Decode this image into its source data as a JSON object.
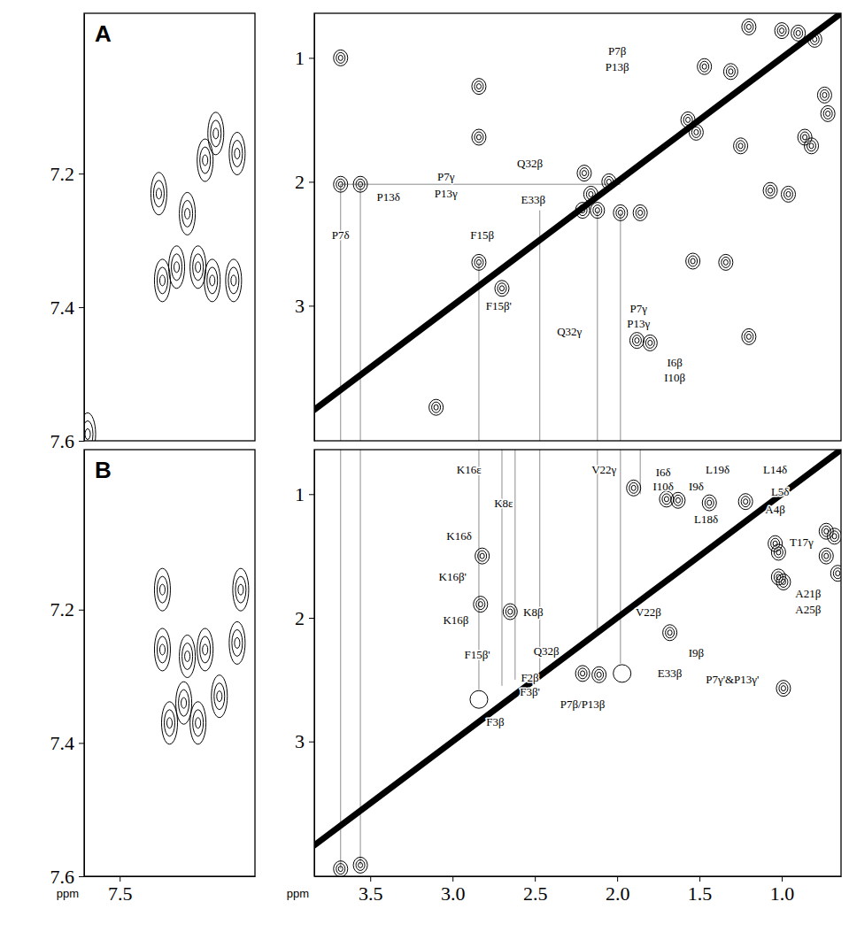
{
  "chart_data": [
    {
      "type": "contour",
      "title": "A",
      "xlim": [
        7.6,
        7.12
      ],
      "ylim": [
        6.96,
        7.6
      ],
      "yticks": [
        7.2,
        7.4,
        7.6
      ],
      "tick_labels": "y",
      "series": [
        {
          "type": "scatter",
          "marker": "contour",
          "x": [
            7.39,
            7.38,
            7.34,
            7.31,
            7.28,
            7.26,
            7.24,
            7.18,
            7.17,
            7.23,
            7.59
          ],
          "values": [
            7.23,
            7.36,
            7.34,
            7.26,
            7.34,
            7.18,
            7.36,
            7.36,
            7.17,
            7.14,
            7.59
          ]
        }
      ]
    },
    {
      "type": "contour",
      "xlim": [
        3.84,
        0.64
      ],
      "ylim": [
        0.64,
        4.09
      ],
      "yticks": [
        1,
        2,
        3
      ],
      "tick_labels": "y",
      "series": [
        {
          "type": "line",
          "x": [
            3.84,
            3.4,
            3.0,
            2.6,
            2.2,
            1.8,
            1.4,
            1.0,
            0.64
          ],
          "values": [
            3.84,
            3.4,
            3.0,
            2.6,
            2.2,
            1.8,
            1.4,
            1.0,
            0.64
          ]
        },
        {
          "type": "scatter",
          "marker": "contour",
          "x": [
            3.68,
            3.68,
            3.56,
            2.84,
            2.84,
            2.84,
            2.7,
            2.2,
            2.05,
            2.16,
            2.21,
            2.12,
            1.98,
            1.86,
            1.88,
            1.8,
            3.1,
            1.2,
            1.54,
            1.34,
            1.07,
            0.96,
            0.72,
            0.74,
            0.86,
            0.82,
            1.2,
            1.0,
            0.9,
            0.8,
            1.47,
            1.31,
            1.57,
            1.52,
            1.25
          ],
          "values": [
            1.0,
            2.02,
            2.02,
            1.23,
            1.64,
            2.65,
            2.86,
            1.93,
            2.0,
            2.1,
            2.23,
            2.23,
            2.25,
            2.25,
            3.28,
            3.3,
            3.82,
            3.25,
            2.64,
            2.65,
            2.07,
            2.1,
            1.45,
            1.3,
            1.64,
            1.71,
            0.75,
            0.78,
            0.8,
            0.85,
            1.07,
            1.11,
            1.5,
            1.6,
            1.71
          ]
        }
      ],
      "guides": [
        {
          "x": [
            3.68,
            3.68
          ],
          "y": [
            2.02,
            4.09
          ]
        },
        {
          "x": [
            3.56,
            3.56
          ],
          "y": [
            2.02,
            4.09
          ]
        },
        {
          "x": [
            3.68,
            1.98
          ],
          "y": [
            2.02,
            2.02
          ]
        },
        {
          "x": [
            2.84,
            2.84
          ],
          "y": [
            2.65,
            4.09
          ]
        },
        {
          "x": [
            2.47,
            2.47
          ],
          "y": [
            2.23,
            4.09
          ]
        },
        {
          "x": [
            2.12,
            2.12
          ],
          "y": [
            2.23,
            4.09
          ]
        },
        {
          "x": [
            1.98,
            1.98
          ],
          "y": [
            2.25,
            4.09
          ]
        }
      ],
      "annotations": [
        {
          "text": "P7β",
          "x": 2.0,
          "y": 0.94
        },
        {
          "text": "P13β",
          "x": 2.0,
          "y": 1.07
        },
        {
          "text": "P7γ",
          "x": 3.04,
          "y": 1.96
        },
        {
          "text": "P13γ",
          "x": 3.04,
          "y": 2.09
        },
        {
          "text": "P13δ",
          "x": 3.39,
          "y": 2.12
        },
        {
          "text": "P7δ",
          "x": 3.68,
          "y": 2.43
        },
        {
          "text": "Q32β",
          "x": 2.53,
          "y": 1.85
        },
        {
          "text": "E33β",
          "x": 2.51,
          "y": 2.14
        },
        {
          "text": "F15β",
          "x": 2.82,
          "y": 2.43
        },
        {
          "text": "F15β'",
          "x": 2.72,
          "y": 3.0
        },
        {
          "text": "Q32γ",
          "x": 2.29,
          "y": 3.21
        },
        {
          "text": "P7γ",
          "x": 1.87,
          "y": 3.02
        },
        {
          "text": "P13γ",
          "x": 1.87,
          "y": 3.14
        },
        {
          "text": "I6β",
          "x": 1.65,
          "y": 3.46
        },
        {
          "text": "I10β",
          "x": 1.65,
          "y": 3.58
        }
      ]
    },
    {
      "type": "contour",
      "title": "B",
      "x_label": "ppm",
      "xlim": [
        7.6,
        7.12
      ],
      "ylim": [
        6.96,
        7.6
      ],
      "xticks": [
        7.5
      ],
      "yticks": [
        7.2,
        7.4,
        7.6
      ],
      "tick_labels": true,
      "series": [
        {
          "type": "scatter",
          "marker": "contour",
          "x": [
            7.38,
            7.38,
            7.36,
            7.32,
            7.28,
            7.26,
            7.22,
            7.16,
            7.17,
            7.31
          ],
          "values": [
            7.17,
            7.26,
            7.37,
            7.34,
            7.37,
            7.26,
            7.33,
            7.17,
            7.25,
            7.27
          ]
        }
      ]
    },
    {
      "type": "contour",
      "x_label": "ppm",
      "xlim": [
        3.84,
        0.64
      ],
      "ylim": [
        0.64,
        4.09
      ],
      "xticks": [
        3.5,
        {
          "value": 3,
          "label": "3.0"
        },
        2.5,
        {
          "value": 2,
          "label": "2.0"
        },
        1.5,
        {
          "value": 1,
          "label": "1.0"
        }
      ],
      "yticks": [
        1,
        2,
        3
      ],
      "tick_labels": true,
      "series": [
        {
          "type": "line",
          "x": [
            3.84,
            3.4,
            3.0,
            2.6,
            2.2,
            1.8,
            1.4,
            1.0,
            0.64
          ],
          "values": [
            3.84,
            3.4,
            3.0,
            2.6,
            2.2,
            1.8,
            1.4,
            1.0,
            0.64
          ]
        },
        {
          "type": "scatter",
          "marker": "contour",
          "x": [
            2.82,
            2.83,
            2.65,
            1.9,
            1.7,
            1.63,
            1.44,
            1.22,
            1.68,
            2.21,
            2.11,
            0.99,
            0.73,
            0.68,
            0.73,
            0.66,
            1.04,
            1.02,
            1.02,
            0.99,
            3.68,
            3.56
          ],
          "values": [
            1.5,
            1.89,
            1.95,
            0.95,
            1.04,
            1.05,
            1.07,
            1.06,
            2.12,
            2.45,
            2.46,
            2.57,
            1.3,
            1.34,
            1.5,
            1.64,
            1.4,
            1.47,
            1.67,
            1.71,
            4.03,
            4.0
          ]
        },
        {
          "type": "scatter",
          "marker": "open-circle",
          "x": [
            2.84,
            1.97
          ],
          "values": [
            2.66,
            2.45
          ]
        }
      ],
      "guides": [
        {
          "x": [
            3.68,
            3.68
          ],
          "y": [
            0.64,
            4.03
          ]
        },
        {
          "x": [
            3.56,
            3.56
          ],
          "y": [
            0.64,
            4.0
          ]
        },
        {
          "x": [
            2.84,
            2.84
          ],
          "y": [
            0.64,
            2.58
          ]
        },
        {
          "x": [
            2.7,
            2.7
          ],
          "y": [
            0.64,
            2.55
          ]
        },
        {
          "x": [
            2.62,
            2.62
          ],
          "y": [
            0.64,
            2.5
          ]
        },
        {
          "x": [
            2.47,
            2.47
          ],
          "y": [
            0.64,
            2.45
          ]
        },
        {
          "x": [
            2.12,
            2.12
          ],
          "y": [
            0.64,
            2.12
          ]
        },
        {
          "x": [
            1.98,
            1.98
          ],
          "y": [
            0.64,
            2.37
          ]
        },
        {
          "x": [
            1.86,
            1.86
          ],
          "y": [
            0.64,
            1.0
          ]
        }
      ],
      "annotations": [
        {
          "text": "K16ε",
          "x": 2.9,
          "y": 0.8
        },
        {
          "text": "K8ε",
          "x": 2.69,
          "y": 1.07
        },
        {
          "text": "K16δ",
          "x": 2.96,
          "y": 1.34
        },
        {
          "text": "K16β'",
          "x": 3.0,
          "y": 1.67
        },
        {
          "text": "K16β",
          "x": 2.98,
          "y": 2.02
        },
        {
          "text": "K8β",
          "x": 2.51,
          "y": 1.95
        },
        {
          "text": "V22γ",
          "x": 2.08,
          "y": 0.8
        },
        {
          "text": "I6δ",
          "x": 1.72,
          "y": 0.82
        },
        {
          "text": "I10δ",
          "x": 1.72,
          "y": 0.94
        },
        {
          "text": "I9δ",
          "x": 1.52,
          "y": 0.94
        },
        {
          "text": "L19δ",
          "x": 1.39,
          "y": 0.8
        },
        {
          "text": "L14δ",
          "x": 1.04,
          "y": 0.8
        },
        {
          "text": "L18δ",
          "x": 1.46,
          "y": 1.2
        },
        {
          "text": "L5δ",
          "x": 1.01,
          "y": 0.98
        },
        {
          "text": "A4β",
          "x": 1.04,
          "y": 1.12
        },
        {
          "text": "T17γ",
          "x": 0.88,
          "y": 1.39
        },
        {
          "text": "V22β",
          "x": 1.81,
          "y": 1.95
        },
        {
          "text": "A21β",
          "x": 0.84,
          "y": 1.8
        },
        {
          "text": "A25β",
          "x": 0.84,
          "y": 1.93
        },
        {
          "text": "I9β",
          "x": 1.52,
          "y": 2.28
        },
        {
          "text": "P7γ'&P13γ'",
          "x": 1.3,
          "y": 2.5
        },
        {
          "text": "Q32β",
          "x": 2.43,
          "y": 2.27
        },
        {
          "text": "P7β/P13β",
          "x": 2.21,
          "y": 2.7
        },
        {
          "text": "E33β",
          "x": 1.68,
          "y": 2.45
        },
        {
          "text": "F15β'",
          "x": 2.85,
          "y": 2.3
        },
        {
          "text": "F2β",
          "x": 2.53,
          "y": 2.48
        },
        {
          "text": "F3β'",
          "x": 2.53,
          "y": 2.6
        },
        {
          "text": "F3β",
          "x": 2.74,
          "y": 2.84
        }
      ]
    }
  ]
}
